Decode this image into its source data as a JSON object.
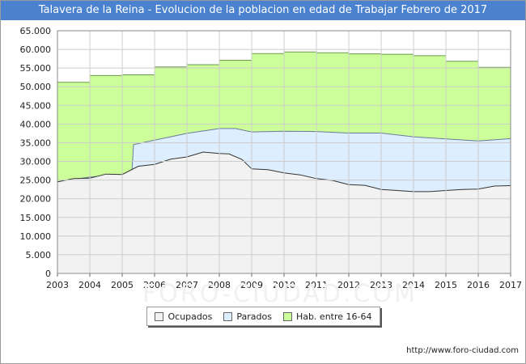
{
  "page": {
    "title": "Talavera de la Reina - Evolucion de la poblacion en edad de Trabajar Febrero de 2017",
    "url": "http://www.foro-ciudad.com",
    "watermark": "FORO-CIUDAD.COM"
  },
  "legend": {
    "items": [
      {
        "label": "Ocupados",
        "color": "#f2f2f2"
      },
      {
        "label": "Parados",
        "color": "#ddeeff"
      },
      {
        "label": "Hab. entre 16-64",
        "color": "#ccff99"
      }
    ]
  },
  "chart_data": {
    "type": "area",
    "title": "Talavera de la Reina - Evolucion de la poblacion en edad de Trabajar Febrero de 2017",
    "xlabel": "",
    "ylabel": "",
    "xlim": [
      2003,
      2017
    ],
    "ylim": [
      0,
      65000
    ],
    "x_ticks": [
      "2003",
      "2004",
      "2005",
      "2006",
      "2007",
      "2008",
      "2009",
      "2010",
      "2011",
      "2012",
      "2013",
      "2014",
      "2015",
      "2016",
      "2017"
    ],
    "y_ticks": [
      "0",
      "5.000",
      "10.000",
      "15.000",
      "20.000",
      "25.000",
      "30.000",
      "35.000",
      "40.000",
      "45.000",
      "50.000",
      "55.000",
      "60.000",
      "65.000"
    ],
    "grid": true,
    "legend_position": "bottom",
    "series": [
      {
        "name": "Hab. entre 16-64",
        "color": "#ccff99",
        "line_color": "#6a9a4a",
        "step": true,
        "x": [
          2003.0,
          2004.0,
          2005.0,
          2006.0,
          2007.0,
          2008.0,
          2009.0,
          2010.0,
          2011.0,
          2012.0,
          2013.0,
          2014.0,
          2015.0,
          2016.0,
          2017.0
        ],
        "y": [
          51200,
          53000,
          53200,
          55300,
          55900,
          57100,
          58900,
          59300,
          59100,
          58800,
          58700,
          58300,
          56800,
          55200,
          54400
        ]
      },
      {
        "name": "Parados",
        "color": "#ddeeff",
        "line_color": "#6a7a9a",
        "x": [
          2003.0,
          2004.0,
          2005.0,
          2005.3,
          2005.35,
          2006.0,
          2007.0,
          2008.0,
          2008.5,
          2009.0,
          2010.0,
          2011.0,
          2012.0,
          2013.0,
          2014.0,
          2015.0,
          2016.0,
          2017.0
        ],
        "y": [
          24500,
          25800,
          26500,
          27300,
          34500,
          35700,
          37500,
          38800,
          38800,
          37900,
          38100,
          38000,
          37600,
          37600,
          36600,
          36000,
          35500,
          36100
        ]
      },
      {
        "name": "Ocupados",
        "color": "#f2f2f2",
        "line_color": "#333333",
        "x": [
          2003.0,
          2003.5,
          2004.0,
          2004.5,
          2005.0,
          2005.5,
          2006.0,
          2006.5,
          2007.0,
          2007.5,
          2008.0,
          2008.3,
          2008.7,
          2009.0,
          2009.5,
          2010.0,
          2010.5,
          2011.0,
          2011.5,
          2012.0,
          2012.5,
          2013.0,
          2013.5,
          2014.0,
          2014.5,
          2015.0,
          2015.5,
          2016.0,
          2016.5,
          2017.0
        ],
        "y": [
          24500,
          25400,
          25500,
          26600,
          26500,
          28700,
          29200,
          30600,
          31200,
          32500,
          32100,
          32000,
          30500,
          28000,
          27800,
          26900,
          26400,
          25400,
          24900,
          23800,
          23600,
          22500,
          22200,
          21900,
          21900,
          22200,
          22500,
          22600,
          23400,
          23500
        ]
      }
    ]
  }
}
